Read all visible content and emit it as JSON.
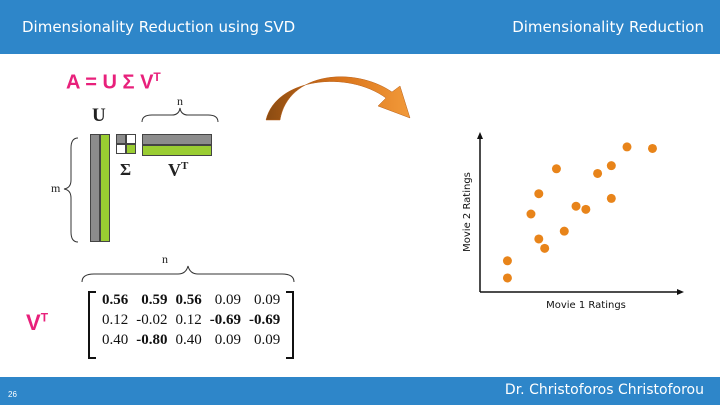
{
  "header": {
    "title": "Dimensionality Reduction using SVD",
    "section": "Dimensionality Reduction"
  },
  "footer": {
    "author": "Dr. Christoforos Christoforou",
    "page_number": "26"
  },
  "formula": {
    "lhs": "A = U ",
    "sigma": "Σ",
    "v": " V",
    "sup": "T"
  },
  "diagram": {
    "u_label": "U",
    "sigma_label": "Σ",
    "vt_label": "V",
    "vt_sup": "T",
    "n_label": "n",
    "m_label": "m",
    "colors": {
      "gray": "#8c8c8c",
      "green": "#9acd32"
    }
  },
  "vt_matrix": {
    "label": "V",
    "label_sup": "T",
    "n_label": "n",
    "rows": [
      [
        {
          "v": "0.56",
          "bold": true
        },
        {
          "v": "0.59",
          "bold": true
        },
        {
          "v": "0.56",
          "bold": true
        },
        {
          "v": "0.09",
          "bold": false
        },
        {
          "v": "0.09",
          "bold": false
        }
      ],
      [
        {
          "v": "0.12",
          "bold": false
        },
        {
          "v": "-0.02",
          "bold": false
        },
        {
          "v": "0.12",
          "bold": false
        },
        {
          "v": "-0.69",
          "bold": true
        },
        {
          "v": "-0.69",
          "bold": true
        }
      ],
      [
        {
          "v": "0.40",
          "bold": false
        },
        {
          "v": "-0.80",
          "bold": true
        },
        {
          "v": "0.40",
          "bold": false
        },
        {
          "v": "0.09",
          "bold": false
        },
        {
          "v": "0.09",
          "bold": false
        }
      ]
    ]
  },
  "arrow": {
    "color": "#d9731a"
  },
  "chart_data": {
    "type": "scatter",
    "xlabel": "Movie 1 Ratings",
    "ylabel": "Movie 2 Ratings",
    "xlim": [
      0,
      10
    ],
    "ylim": [
      0,
      10
    ],
    "point_color": "#e8841a",
    "points": [
      {
        "x": 1.4,
        "y": 2.0
      },
      {
        "x": 1.4,
        "y": 0.9
      },
      {
        "x": 2.6,
        "y": 5.0
      },
      {
        "x": 3.0,
        "y": 3.4
      },
      {
        "x": 3.3,
        "y": 2.8
      },
      {
        "x": 3.0,
        "y": 6.3
      },
      {
        "x": 3.9,
        "y": 7.9
      },
      {
        "x": 4.3,
        "y": 3.9
      },
      {
        "x": 4.9,
        "y": 5.5
      },
      {
        "x": 5.4,
        "y": 5.3
      },
      {
        "x": 6.0,
        "y": 7.6
      },
      {
        "x": 6.7,
        "y": 8.1
      },
      {
        "x": 6.7,
        "y": 6.0
      },
      {
        "x": 7.5,
        "y": 9.3
      },
      {
        "x": 8.8,
        "y": 9.2
      }
    ]
  }
}
